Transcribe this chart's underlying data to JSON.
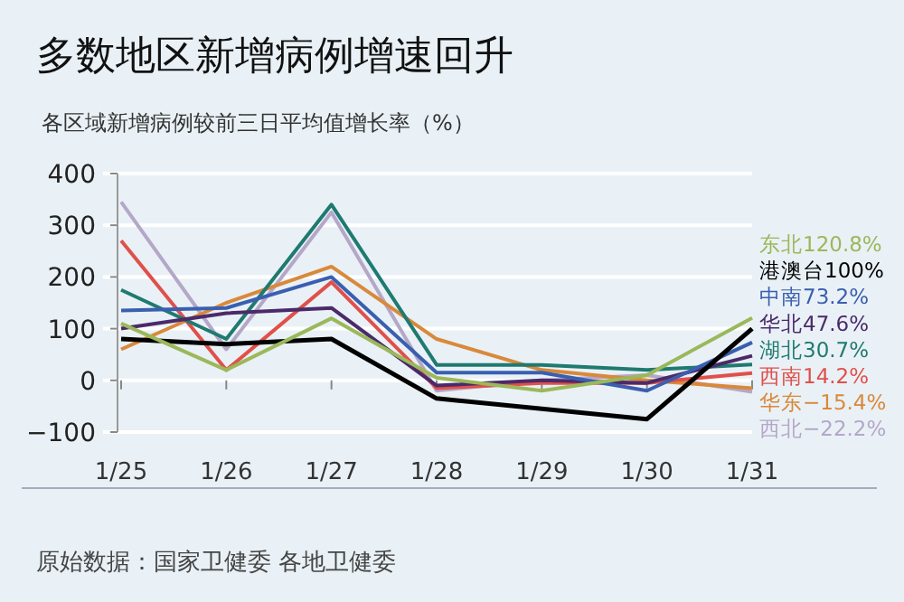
{
  "chart_data": {
    "type": "line",
    "title": "多数地区新增病例增速回升",
    "subtitle": "各区域新增病例较前三日平均值增长率（%）",
    "categories": [
      "1/25",
      "1/26",
      "1/27",
      "1/28",
      "1/29",
      "1/30",
      "1/31"
    ],
    "ylim": [
      -100,
      400
    ],
    "yticks": [
      -100,
      0,
      100,
      200,
      300,
      400
    ],
    "grid": "y",
    "legend": "right",
    "marker": "none",
    "line_style": "solid",
    "annotations": [
      "原始数据：国家卫健委 各地卫健委"
    ],
    "series": [
      {
        "name": "东北120.8%",
        "color": "#9bb85a",
        "values": [
          110,
          20,
          120,
          5,
          -20,
          10,
          120.8
        ]
      },
      {
        "name": "港澳台100%",
        "color": "#000000",
        "values": [
          80,
          70,
          80,
          -35,
          -55,
          -75,
          100
        ]
      },
      {
        "name": "中南73.2%",
        "color": "#3a5fb0",
        "values": [
          135,
          140,
          200,
          15,
          15,
          -20,
          73.2
        ]
      },
      {
        "name": "华北47.6%",
        "color": "#4b2a6a",
        "values": [
          100,
          130,
          140,
          -10,
          0,
          -5,
          47.6
        ]
      },
      {
        "name": "湖北30.7%",
        "color": "#1f7a70",
        "values": [
          175,
          80,
          340,
          30,
          30,
          20,
          30.7
        ]
      },
      {
        "name": "西南14.2%",
        "color": "#e0504a",
        "values": [
          270,
          20,
          190,
          -15,
          -5,
          -5,
          14.2
        ]
      },
      {
        "name": "华东−15.4%",
        "color": "#d9893a",
        "values": [
          60,
          150,
          220,
          80,
          20,
          0,
          -15.4
        ]
      },
      {
        "name": "西北−22.2%",
        "color": "#b5a7c8",
        "values": [
          345,
          60,
          325,
          -20,
          0,
          10,
          -22.2
        ]
      }
    ]
  }
}
